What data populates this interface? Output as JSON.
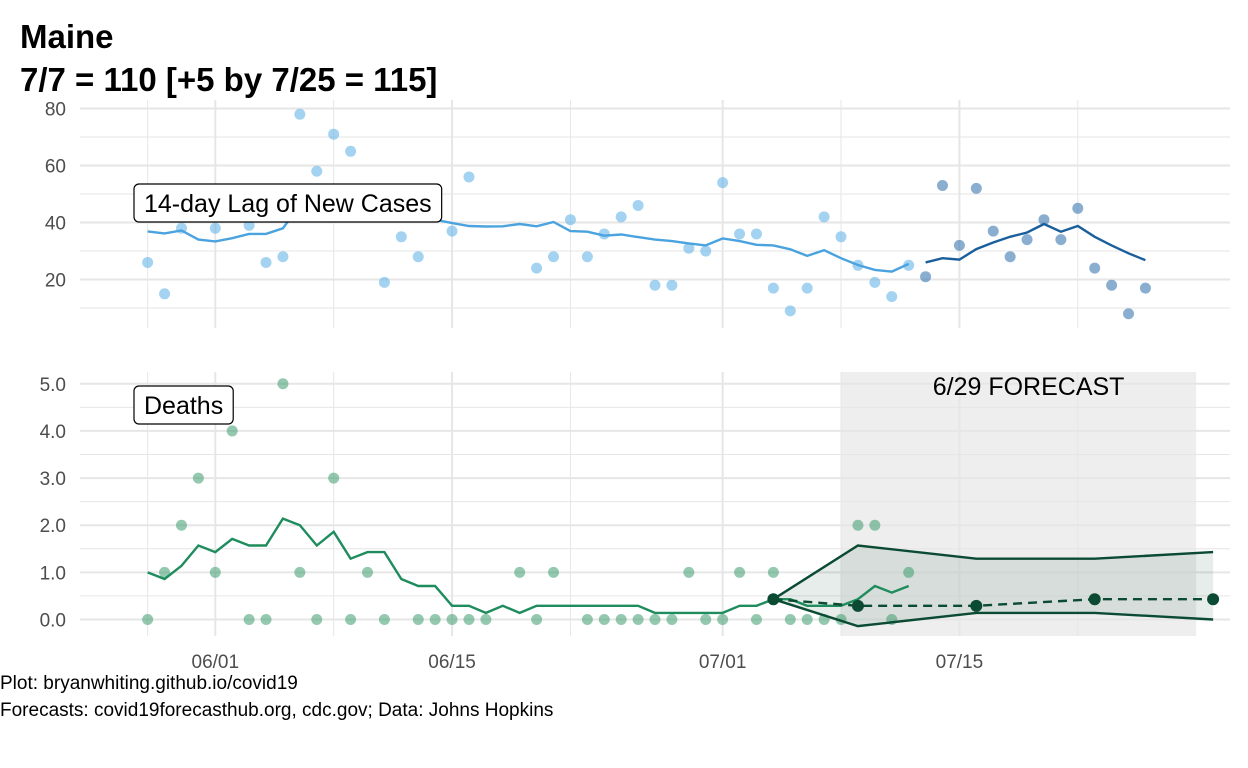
{
  "colors": {
    "cases_obs": "#5aaee8",
    "cases_obs_line": "#4aa3df",
    "cases_pred": "#3b78b0",
    "cases_pred_line": "#1a5f9c",
    "deaths_point": "#3d9d6e",
    "deaths_line": "#1e8c5c",
    "forecast_dark": "#0b4a33",
    "forecast_band": "#eeeeee",
    "grid": "#e6e6e6"
  },
  "chart_data": {
    "title": "Maine",
    "subtitle": "7/7 = 110 [+5 by 7/25 = 115]",
    "x_axis": {
      "type": "date",
      "range": [
        "2020-05-24",
        "2020-07-31"
      ],
      "ticks": [
        {
          "date": "2020-06-01",
          "label": "06/01"
        },
        {
          "date": "2020-06-15",
          "label": "06/15"
        },
        {
          "date": "2020-07-01",
          "label": "07/01"
        },
        {
          "date": "2020-07-15",
          "label": "07/15"
        }
      ]
    },
    "panels": [
      {
        "type": "scatter+line",
        "label": "14-day Lag of New Cases",
        "ylim": [
          3,
          83
        ],
        "yticks": [
          {
            "v": 20,
            "label": "20"
          },
          {
            "v": 40,
            "label": "40"
          },
          {
            "v": 60,
            "label": "60"
          },
          {
            "v": 80,
            "label": "80"
          }
        ],
        "points_observed": [
          [
            "2020-05-28",
            26
          ],
          [
            "2020-05-29",
            15
          ],
          [
            "2020-05-30",
            38
          ],
          [
            "2020-06-01",
            38
          ],
          [
            "2020-06-03",
            39
          ],
          [
            "2020-06-04",
            26
          ],
          [
            "2020-06-05",
            28
          ],
          [
            "2020-06-06",
            78
          ],
          [
            "2020-06-07",
            58
          ],
          [
            "2020-06-08",
            71
          ],
          [
            "2020-06-09",
            65
          ],
          [
            "2020-06-10",
            42
          ],
          [
            "2020-06-11",
            19
          ],
          [
            "2020-06-12",
            35
          ],
          [
            "2020-06-13",
            28
          ],
          [
            "2020-06-15",
            37
          ],
          [
            "2020-06-16",
            56
          ],
          [
            "2020-06-20",
            24
          ],
          [
            "2020-06-21",
            28
          ],
          [
            "2020-06-22",
            41
          ],
          [
            "2020-06-23",
            28
          ],
          [
            "2020-06-24",
            36
          ],
          [
            "2020-06-25",
            42
          ],
          [
            "2020-06-26",
            46
          ],
          [
            "2020-06-27",
            18
          ],
          [
            "2020-06-28",
            18
          ],
          [
            "2020-06-29",
            31
          ],
          [
            "2020-06-30",
            30
          ],
          [
            "2020-07-01",
            54
          ],
          [
            "2020-07-02",
            36
          ],
          [
            "2020-07-03",
            36
          ],
          [
            "2020-07-04",
            17
          ],
          [
            "2020-07-05",
            9
          ],
          [
            "2020-07-06",
            17
          ],
          [
            "2020-07-07",
            42
          ],
          [
            "2020-07-08",
            35
          ],
          [
            "2020-07-09",
            25
          ],
          [
            "2020-07-10",
            19
          ],
          [
            "2020-07-11",
            14
          ],
          [
            "2020-07-12",
            25
          ]
        ],
        "line_observed": [
          [
            "2020-05-28",
            36.9
          ],
          [
            "2020-05-29",
            36.2
          ],
          [
            "2020-05-30",
            37.2
          ],
          [
            "2020-05-31",
            34
          ],
          [
            "2020-06-01",
            33.4
          ],
          [
            "2020-06-02",
            34.5
          ],
          [
            "2020-06-03",
            36
          ],
          [
            "2020-06-04",
            36
          ],
          [
            "2020-06-05",
            38
          ],
          [
            "2020-06-06",
            46
          ],
          [
            "2020-06-07",
            49
          ],
          [
            "2020-06-08",
            51
          ],
          [
            "2020-06-09",
            50
          ],
          [
            "2020-06-10",
            47
          ],
          [
            "2020-06-11",
            44
          ],
          [
            "2020-06-12",
            43
          ],
          [
            "2020-06-13",
            42
          ],
          [
            "2020-06-14",
            41
          ],
          [
            "2020-06-15",
            39.8
          ],
          [
            "2020-06-16",
            38.8
          ],
          [
            "2020-06-17",
            38.6
          ],
          [
            "2020-06-18",
            38.7
          ],
          [
            "2020-06-19",
            39.5
          ],
          [
            "2020-06-20",
            38.7
          ],
          [
            "2020-06-21",
            40.2
          ],
          [
            "2020-06-22",
            37
          ],
          [
            "2020-06-23",
            36.8
          ],
          [
            "2020-06-24",
            35.4
          ],
          [
            "2020-06-25",
            35.8
          ],
          [
            "2020-06-26",
            34.9
          ],
          [
            "2020-06-27",
            34
          ],
          [
            "2020-06-28",
            33.5
          ],
          [
            "2020-06-29",
            32.7
          ],
          [
            "2020-06-30",
            32
          ],
          [
            "2020-07-01",
            34.4
          ],
          [
            "2020-07-02",
            33.5
          ],
          [
            "2020-07-03",
            32.2
          ],
          [
            "2020-07-04",
            32
          ],
          [
            "2020-07-05",
            30.6
          ],
          [
            "2020-07-06",
            28.3
          ],
          [
            "2020-07-07",
            30.3
          ],
          [
            "2020-07-08",
            27.5
          ],
          [
            "2020-07-09",
            25.1
          ],
          [
            "2020-07-10",
            23.4
          ],
          [
            "2020-07-11",
            22.8
          ],
          [
            "2020-07-12",
            25.5
          ]
        ],
        "points_predicted": [
          [
            "2020-07-13",
            21
          ],
          [
            "2020-07-14",
            53
          ],
          [
            "2020-07-15",
            32
          ],
          [
            "2020-07-16",
            52
          ],
          [
            "2020-07-17",
            37
          ],
          [
            "2020-07-18",
            28
          ],
          [
            "2020-07-19",
            34
          ],
          [
            "2020-07-20",
            41
          ],
          [
            "2020-07-21",
            34
          ],
          [
            "2020-07-22",
            45
          ],
          [
            "2020-07-23",
            24
          ],
          [
            "2020-07-24",
            18
          ],
          [
            "2020-07-25",
            8
          ],
          [
            "2020-07-26",
            17
          ]
        ],
        "line_predicted": [
          [
            "2020-07-13",
            26
          ],
          [
            "2020-07-14",
            27.5
          ],
          [
            "2020-07-15",
            27
          ],
          [
            "2020-07-16",
            30.7
          ],
          [
            "2020-07-17",
            33
          ],
          [
            "2020-07-18",
            35
          ],
          [
            "2020-07-19",
            36.5
          ],
          [
            "2020-07-20",
            39.5
          ],
          [
            "2020-07-21",
            36.8
          ],
          [
            "2020-07-22",
            38.8
          ],
          [
            "2020-07-23",
            35
          ],
          [
            "2020-07-24",
            32
          ],
          [
            "2020-07-25",
            29.2
          ],
          [
            "2020-07-26",
            26.8
          ]
        ]
      },
      {
        "type": "scatter+line+forecast",
        "label": "Deaths",
        "ylim": [
          -0.35,
          5.25
        ],
        "yticks": [
          {
            "v": 0,
            "label": "0.0"
          },
          {
            "v": 1,
            "label": "1.0"
          },
          {
            "v": 2,
            "label": "2.0"
          },
          {
            "v": 3,
            "label": "3.0"
          },
          {
            "v": 4,
            "label": "4.0"
          },
          {
            "v": 5,
            "label": "5.0"
          }
        ],
        "points": [
          [
            "2020-05-28",
            0
          ],
          [
            "2020-05-29",
            1
          ],
          [
            "2020-05-30",
            2
          ],
          [
            "2020-05-31",
            3
          ],
          [
            "2020-06-01",
            1
          ],
          [
            "2020-06-02",
            4
          ],
          [
            "2020-06-03",
            0
          ],
          [
            "2020-06-04",
            0
          ],
          [
            "2020-06-05",
            5
          ],
          [
            "2020-06-06",
            1
          ],
          [
            "2020-06-07",
            0
          ],
          [
            "2020-06-08",
            3
          ],
          [
            "2020-06-09",
            0
          ],
          [
            "2020-06-10",
            1
          ],
          [
            "2020-06-11",
            0
          ],
          [
            "2020-06-13",
            0
          ],
          [
            "2020-06-14",
            0
          ],
          [
            "2020-06-15",
            0
          ],
          [
            "2020-06-16",
            0
          ],
          [
            "2020-06-17",
            0
          ],
          [
            "2020-06-19",
            1
          ],
          [
            "2020-06-20",
            0
          ],
          [
            "2020-06-21",
            1
          ],
          [
            "2020-06-23",
            0
          ],
          [
            "2020-06-24",
            0
          ],
          [
            "2020-06-25",
            0
          ],
          [
            "2020-06-26",
            0
          ],
          [
            "2020-06-27",
            0
          ],
          [
            "2020-06-28",
            0
          ],
          [
            "2020-06-29",
            1
          ],
          [
            "2020-06-30",
            0
          ],
          [
            "2020-07-01",
            0
          ],
          [
            "2020-07-02",
            1
          ],
          [
            "2020-07-03",
            0
          ],
          [
            "2020-07-04",
            1
          ],
          [
            "2020-07-05",
            0
          ],
          [
            "2020-07-06",
            0
          ],
          [
            "2020-07-07",
            0
          ],
          [
            "2020-07-08",
            0
          ],
          [
            "2020-07-09",
            2
          ],
          [
            "2020-07-10",
            2
          ],
          [
            "2020-07-11",
            0
          ],
          [
            "2020-07-12",
            1
          ]
        ],
        "line": [
          [
            "2020-05-28",
            1
          ],
          [
            "2020-05-29",
            0.86
          ],
          [
            "2020-05-30",
            1.14
          ],
          [
            "2020-05-31",
            1.57
          ],
          [
            "2020-06-01",
            1.43
          ],
          [
            "2020-06-02",
            1.71
          ],
          [
            "2020-06-03",
            1.57
          ],
          [
            "2020-06-04",
            1.57
          ],
          [
            "2020-06-05",
            2.14
          ],
          [
            "2020-06-06",
            2
          ],
          [
            "2020-06-07",
            1.57
          ],
          [
            "2020-06-08",
            1.86
          ],
          [
            "2020-06-09",
            1.29
          ],
          [
            "2020-06-10",
            1.43
          ],
          [
            "2020-06-11",
            1.43
          ],
          [
            "2020-06-12",
            0.86
          ],
          [
            "2020-06-13",
            0.71
          ],
          [
            "2020-06-14",
            0.71
          ],
          [
            "2020-06-15",
            0.29
          ],
          [
            "2020-06-16",
            0.29
          ],
          [
            "2020-06-17",
            0.14
          ],
          [
            "2020-06-18",
            0.29
          ],
          [
            "2020-06-19",
            0.14
          ],
          [
            "2020-06-20",
            0.29
          ],
          [
            "2020-06-21",
            0.29
          ],
          [
            "2020-06-22",
            0.29
          ],
          [
            "2020-06-23",
            0.29
          ],
          [
            "2020-06-24",
            0.29
          ],
          [
            "2020-06-25",
            0.29
          ],
          [
            "2020-06-26",
            0.29
          ],
          [
            "2020-06-27",
            0.14
          ],
          [
            "2020-06-28",
            0.14
          ],
          [
            "2020-06-29",
            0.14
          ],
          [
            "2020-06-30",
            0.14
          ],
          [
            "2020-07-01",
            0.14
          ],
          [
            "2020-07-02",
            0.29
          ],
          [
            "2020-07-03",
            0.29
          ],
          [
            "2020-07-04",
            0.43
          ],
          [
            "2020-07-05",
            0.43
          ],
          [
            "2020-07-06",
            0.29
          ],
          [
            "2020-07-07",
            0.29
          ],
          [
            "2020-07-08",
            0.29
          ],
          [
            "2020-07-09",
            0.43
          ],
          [
            "2020-07-10",
            0.71
          ],
          [
            "2020-07-11",
            0.57
          ],
          [
            "2020-07-12",
            0.71
          ]
        ],
        "forecast": {
          "label": "6/29 FORECAST",
          "window": [
            "2020-07-08",
            "2020-07-29"
          ],
          "median": [
            [
              "2020-07-04",
              0.43
            ],
            [
              "2020-07-09",
              0.29
            ],
            [
              "2020-07-16",
              0.29
            ],
            [
              "2020-07-23",
              0.43
            ],
            [
              "2020-07-30",
              0.43
            ]
          ],
          "upper": [
            [
              "2020-07-04",
              0.43
            ],
            [
              "2020-07-09",
              1.57
            ],
            [
              "2020-07-16",
              1.29
            ],
            [
              "2020-07-23",
              1.29
            ],
            [
              "2020-07-30",
              1.43
            ]
          ],
          "lower": [
            [
              "2020-07-04",
              0.43
            ],
            [
              "2020-07-09",
              -0.14
            ],
            [
              "2020-07-16",
              0.14
            ],
            [
              "2020-07-23",
              0.14
            ],
            [
              "2020-07-30",
              0
            ]
          ]
        }
      }
    ],
    "caption": [
      "Plot: bryanwhiting.github.io/covid19",
      "Forecasts: covid19forecasthub.org, cdc.gov; Data: Johns Hopkins"
    ]
  }
}
